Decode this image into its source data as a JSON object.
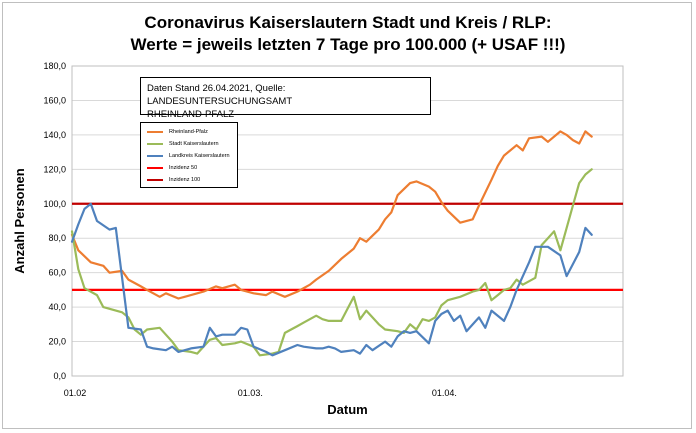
{
  "title_line1": "Coronavirus Kaiserslautern Stadt und Kreis / RLP:",
  "title_line2": "Werte = jeweils letzten 7 Tage pro 100.000 (+ USAF !!!)",
  "note_line1": "Daten Stand 26.04.2021, Quelle: LANDESUNTERSUCHUNGSAMT",
  "note_line2": "RHEINLAND-PFALZ",
  "chart_data": {
    "type": "line",
    "xlabel": "Datum",
    "ylabel": "Anzahl Personen",
    "ylim": [
      0,
      180
    ],
    "yticks": [
      0,
      20,
      40,
      60,
      80,
      100,
      120,
      140,
      160,
      180
    ],
    "ytick_labels": [
      "0,0",
      "20,0",
      "40,0",
      "60,0",
      "80,0",
      "100,0",
      "120,0",
      "140,0",
      "160,0",
      "180,0"
    ],
    "x_start": "2021-02-01",
    "x_end": "2021-04-30",
    "xtick_labels": [
      {
        "label": "01.02",
        "date": "2021-02-01"
      },
      {
        "label": "01.03.",
        "date": "2021-03-01"
      },
      {
        "label": "01.04.",
        "date": "2021-04-01"
      }
    ],
    "grid": true,
    "legend_position": "upper-left",
    "series": [
      {
        "name": "Rheinland-Pfalz",
        "color": "#ED7D31",
        "x": [
          "2021-02-01",
          "2021-02-02",
          "2021-02-04",
          "2021-02-06",
          "2021-02-07",
          "2021-02-09",
          "2021-02-10",
          "2021-02-12",
          "2021-02-13",
          "2021-02-15",
          "2021-02-16",
          "2021-02-18",
          "2021-02-19",
          "2021-02-20",
          "2021-02-22",
          "2021-02-24",
          "2021-02-25",
          "2021-02-27",
          "2021-02-28",
          "2021-03-02",
          "2021-03-04",
          "2021-03-05",
          "2021-03-07",
          "2021-03-09",
          "2021-03-11",
          "2021-03-12",
          "2021-03-14",
          "2021-03-16",
          "2021-03-18",
          "2021-03-19",
          "2021-03-20",
          "2021-03-22",
          "2021-03-23",
          "2021-03-24",
          "2021-03-25",
          "2021-03-27",
          "2021-03-28",
          "2021-03-30",
          "2021-03-31",
          "2021-04-01",
          "2021-04-02",
          "2021-04-04",
          "2021-04-06",
          "2021-04-07",
          "2021-04-09",
          "2021-04-10",
          "2021-04-11",
          "2021-04-13",
          "2021-04-14",
          "2021-04-15",
          "2021-04-17",
          "2021-04-18",
          "2021-04-20",
          "2021-04-21",
          "2021-04-22",
          "2021-04-23",
          "2021-04-24",
          "2021-04-25"
        ],
        "y": [
          82,
          73,
          66,
          64,
          60,
          61,
          56,
          52,
          50,
          46,
          48,
          45,
          46,
          47,
          49,
          52,
          51,
          53,
          50,
          48,
          47,
          49,
          46,
          49,
          53,
          56,
          61,
          68,
          74,
          80,
          78,
          85,
          91,
          95,
          105,
          112,
          113,
          110,
          107,
          101,
          96,
          89,
          91,
          99,
          114,
          122,
          128,
          134,
          131,
          138,
          139,
          136,
          142,
          140,
          137,
          135,
          142,
          139
        ]
      },
      {
        "name": "Stadt Kaiserslautern",
        "color": "#9BBB59",
        "x": [
          "2021-02-01",
          "2021-02-02",
          "2021-02-03",
          "2021-02-05",
          "2021-02-06",
          "2021-02-08",
          "2021-02-09",
          "2021-02-10",
          "2021-02-11",
          "2021-02-12",
          "2021-02-13",
          "2021-02-15",
          "2021-02-16",
          "2021-02-17",
          "2021-02-18",
          "2021-02-20",
          "2021-02-21",
          "2021-02-23",
          "2021-02-24",
          "2021-02-25",
          "2021-02-27",
          "2021-02-28",
          "2021-03-02",
          "2021-03-03",
          "2021-03-05",
          "2021-03-06",
          "2021-03-07",
          "2021-03-08",
          "2021-03-09",
          "2021-03-10",
          "2021-03-12",
          "2021-03-13",
          "2021-03-14",
          "2021-03-16",
          "2021-03-18",
          "2021-03-19",
          "2021-03-20",
          "2021-03-22",
          "2021-03-23",
          "2021-03-25",
          "2021-03-26",
          "2021-03-27",
          "2021-03-28",
          "2021-03-29",
          "2021-03-30",
          "2021-03-31",
          "2021-04-01",
          "2021-04-02",
          "2021-04-04",
          "2021-04-06",
          "2021-04-07",
          "2021-04-08",
          "2021-04-09",
          "2021-04-10",
          "2021-04-11",
          "2021-04-12",
          "2021-04-13",
          "2021-04-14",
          "2021-04-16",
          "2021-04-17",
          "2021-04-18",
          "2021-04-19",
          "2021-04-20",
          "2021-04-22",
          "2021-04-23",
          "2021-04-24",
          "2021-04-25"
        ],
        "y": [
          84,
          62,
          51,
          47,
          40,
          38,
          37,
          34,
          27,
          24,
          27,
          28,
          24,
          20,
          15,
          14,
          13,
          21,
          22,
          18,
          19,
          20,
          17,
          12,
          13,
          14,
          25,
          27,
          29,
          31,
          35,
          33,
          32,
          32,
          46,
          33,
          38,
          30,
          27,
          26,
          25,
          30,
          27,
          33,
          32,
          34,
          41,
          44,
          46,
          49,
          50,
          54,
          44,
          47,
          50,
          51,
          56,
          53,
          57,
          76,
          80,
          84,
          73,
          99,
          112,
          117,
          120
        ]
      },
      {
        "name": "Landkreis Kaiserslautern",
        "color": "#4F81BD",
        "x": [
          "2021-02-01",
          "2021-02-02",
          "2021-02-03",
          "2021-02-04",
          "2021-02-05",
          "2021-02-07",
          "2021-02-08",
          "2021-02-09",
          "2021-02-10",
          "2021-02-12",
          "2021-02-13",
          "2021-02-14",
          "2021-02-16",
          "2021-02-17",
          "2021-02-18",
          "2021-02-19",
          "2021-02-20",
          "2021-02-22",
          "2021-02-23",
          "2021-02-24",
          "2021-02-25",
          "2021-02-27",
          "2021-02-28",
          "2021-03-01",
          "2021-03-02",
          "2021-03-04",
          "2021-03-05",
          "2021-03-07",
          "2021-03-09",
          "2021-03-10",
          "2021-03-12",
          "2021-03-13",
          "2021-03-14",
          "2021-03-15",
          "2021-03-16",
          "2021-03-18",
          "2021-03-19",
          "2021-03-20",
          "2021-03-21",
          "2021-03-23",
          "2021-03-24",
          "2021-03-25",
          "2021-03-26",
          "2021-03-27",
          "2021-03-28",
          "2021-03-30",
          "2021-03-31",
          "2021-04-01",
          "2021-04-02",
          "2021-04-03",
          "2021-04-04",
          "2021-04-05",
          "2021-04-07",
          "2021-04-08",
          "2021-04-09",
          "2021-04-11",
          "2021-04-12",
          "2021-04-13",
          "2021-04-15",
          "2021-04-16",
          "2021-04-18",
          "2021-04-20",
          "2021-04-21",
          "2021-04-22",
          "2021-04-23",
          "2021-04-24",
          "2021-04-25"
        ],
        "y": [
          78,
          88,
          97,
          100,
          90,
          85,
          86,
          57,
          28,
          27,
          17,
          16,
          15,
          17,
          14,
          15,
          16,
          17,
          28,
          23,
          24,
          24,
          28,
          27,
          17,
          14,
          12,
          15,
          18,
          17,
          16,
          16,
          17,
          16,
          14,
          15,
          13,
          18,
          15,
          20,
          17,
          23,
          26,
          25,
          26,
          19,
          32,
          36,
          38,
          32,
          35,
          26,
          34,
          28,
          38,
          32,
          40,
          50,
          66,
          75,
          75,
          70,
          58,
          65,
          72,
          86,
          82
        ]
      },
      {
        "name": "Inzidenz 50",
        "color": "#FF0000",
        "constant": 50
      },
      {
        "name": "Inzidenz 100",
        "color": "#C00000",
        "constant": 100
      }
    ]
  }
}
